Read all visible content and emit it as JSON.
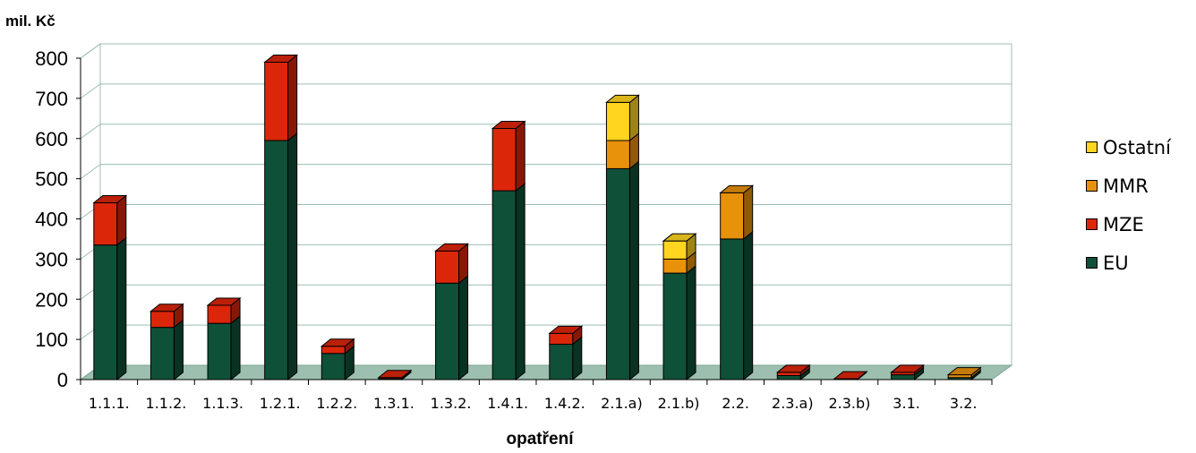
{
  "chart_data": {
    "type": "bar",
    "stacked": true,
    "three_d": true,
    "ylabel": "mil. Kč",
    "xlabel": "opatření",
    "ylim": [
      0,
      800
    ],
    "yticks": [
      0,
      100,
      200,
      300,
      400,
      500,
      600,
      700,
      800
    ],
    "grid": true,
    "legend_position": "right",
    "categories": [
      "1.1.1.",
      "1.1.2.",
      "1.1.3.",
      "1.2.1.",
      "1.2.2.",
      "1.3.1.",
      "1.3.2.",
      "1.4.1.",
      "1.4.2.",
      "2.1.a)",
      "2.1.b)",
      "2.2.",
      "2.3.a)",
      "2.3.b)",
      "3.1.",
      "3.2."
    ],
    "series": [
      {
        "name": "EU",
        "color": "#0f5038",
        "values": [
          335,
          130,
          140,
          595,
          65,
          2,
          240,
          470,
          88,
          525,
          265,
          350,
          10,
          1,
          12,
          5
        ]
      },
      {
        "name": "MZE",
        "color": "#dc260a",
        "values": [
          105,
          40,
          45,
          195,
          18,
          3,
          80,
          155,
          27,
          0,
          0,
          0,
          8,
          1,
          6,
          0
        ]
      },
      {
        "name": "MMR",
        "color": "#e8910a",
        "values": [
          0,
          0,
          0,
          0,
          0,
          0,
          0,
          0,
          0,
          70,
          35,
          115,
          0,
          0,
          0,
          7
        ]
      },
      {
        "name": "Ostatní",
        "color": "#ffd520",
        "values": [
          0,
          0,
          0,
          0,
          0,
          0,
          0,
          0,
          0,
          95,
          45,
          0,
          0,
          0,
          0,
          0
        ]
      }
    ]
  }
}
